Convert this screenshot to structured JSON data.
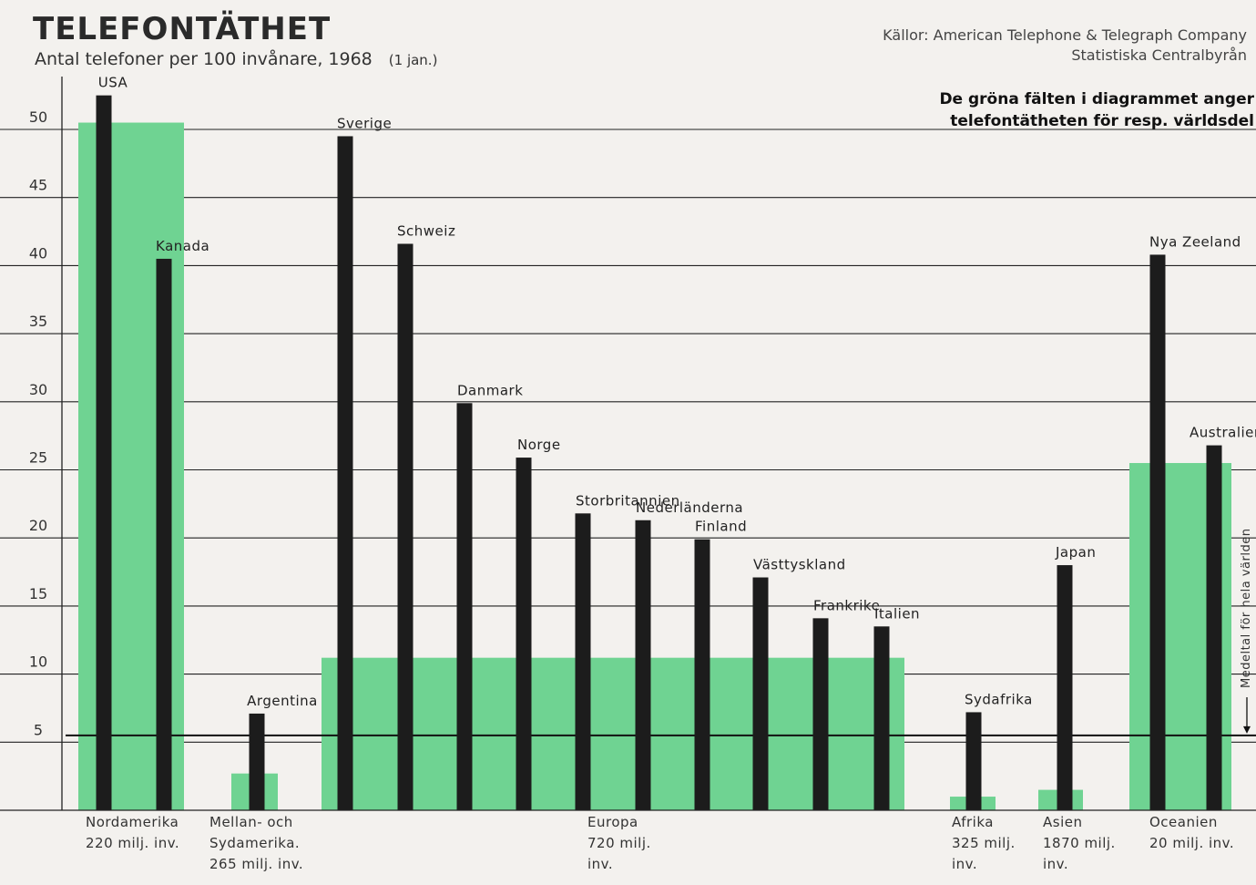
{
  "chart_data": {
    "type": "bar",
    "title": "TELEFONTÄTHET",
    "subtitle": "Antal telefoner per 100 invånare, 1968",
    "subtitle_date": "(1 jan.)",
    "sources": [
      "Källor: American Telephone & Telegraph Company",
      "Statistiska Centralbyrån"
    ],
    "note": [
      "De gröna fälten i diagrammet anger",
      "telefontätheten för resp. världsdel"
    ],
    "world_average_label": "Medeltal för hela världen",
    "world_average": 5.5,
    "ylim": [
      0,
      52
    ],
    "yticks": [
      5,
      10,
      15,
      20,
      25,
      30,
      35,
      40,
      45,
      50
    ],
    "grid": true,
    "colors": {
      "country_bar": "#1c1c1c",
      "continent_field": "#6fd392",
      "grid": "#222222"
    },
    "continents": [
      {
        "name_lines": [
          "Nordamerika",
          "220 milj. inv."
        ],
        "value": 50.5,
        "countries": [
          {
            "name": "USA",
            "value": 52.5
          },
          {
            "name": "Kanada",
            "value": 40.5
          }
        ]
      },
      {
        "name_lines": [
          "Mellan- och",
          "Sydamerika.",
          "265 milj. inv."
        ],
        "value": 2.7,
        "countries": [
          {
            "name": "Argentina",
            "value": 7.1
          }
        ]
      },
      {
        "name_lines": [
          "Europa",
          "720 milj.",
          "inv."
        ],
        "value": 11.2,
        "countries": [
          {
            "name": "Sverige",
            "value": 49.5
          },
          {
            "name": "Schweiz",
            "value": 41.6
          },
          {
            "name": "Danmark",
            "value": 29.9
          },
          {
            "name": "Norge",
            "value": 25.9
          },
          {
            "name": "Storbritannien",
            "value": 21.8
          },
          {
            "name": "Nederländerna",
            "value": 21.3
          },
          {
            "name": "Finland",
            "value": 19.9
          },
          {
            "name": "Västtyskland",
            "value": 17.1
          },
          {
            "name": "Frankrike",
            "value": 14.1
          },
          {
            "name": "Italien",
            "value": 13.5
          }
        ]
      },
      {
        "name_lines": [
          "Afrika",
          "325 milj.",
          "inv."
        ],
        "value": 1.0,
        "countries": [
          {
            "name": "Sydafrika",
            "value": 7.2
          }
        ]
      },
      {
        "name_lines": [
          "Asien",
          "1870 milj.",
          "inv."
        ],
        "value": 1.5,
        "countries": [
          {
            "name": "Japan",
            "value": 18.0
          }
        ]
      },
      {
        "name_lines": [
          "Oceanien",
          "20 milj. inv."
        ],
        "value": 25.5,
        "countries": [
          {
            "name": "Nya Zeeland",
            "value": 40.8
          },
          {
            "name": "Australien",
            "value": 26.8
          }
        ]
      }
    ]
  }
}
